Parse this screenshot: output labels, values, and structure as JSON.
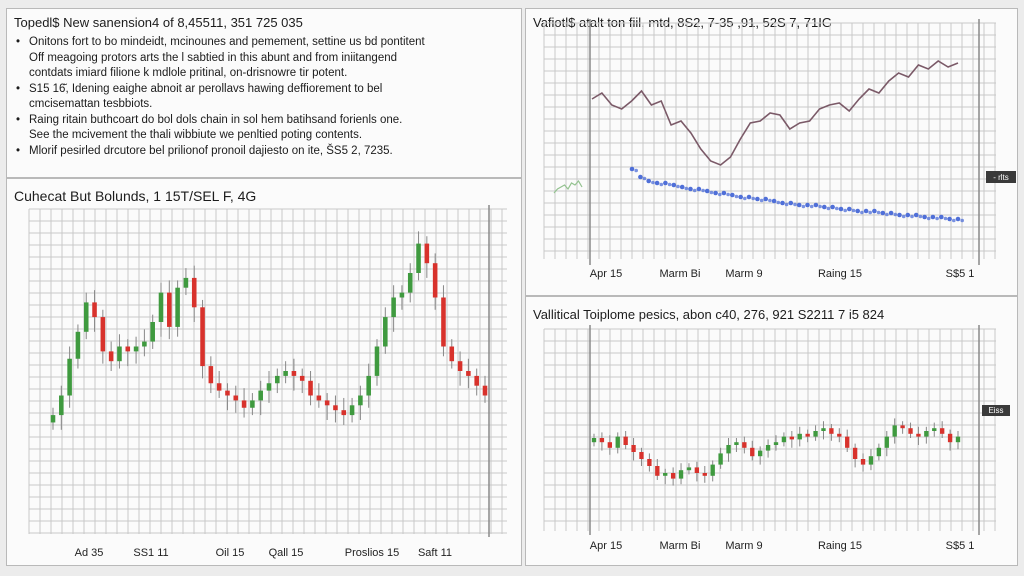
{
  "news": {
    "title": "Topedl$ New sanension4 of 8,45511, 351 725 035",
    "items": [
      {
        "text": "Onitons fort to bo mindeidt, mcinounes and pemement, settine us bd pontitent",
        "cont": false
      },
      {
        "text": "Off meagoing protors arts the l sabtied in this abunt and from iniitangend",
        "cont": true
      },
      {
        "text": "contdats imiard filione k mdlole pritinal, on-drisnowre tir potent.",
        "cont": true
      },
      {
        "text": "S15 16̆, Idening eaighe abnoit ar perollavs hawing deffiorement to bel",
        "cont": false
      },
      {
        "text": "cmcisemattan tesbbiots.",
        "cont": true
      },
      {
        "text": "Raing ritain buthcoart do bol dols chain in sol hem batihsand forienls one.",
        "cont": false
      },
      {
        "text": "See the mcivement the thali wibbiute we penltied poting contents.",
        "cont": true
      },
      {
        "text": "Mlorif pesirled drcutore bel prilionof pronoil dajiesto on ite, S̆S5 2, 7235.",
        "cont": false
      }
    ]
  },
  "candle_panel": {
    "title": "Cuhecat But Bolunds, 1 15T/SEL F, 4G"
  },
  "line_panel": {
    "title": "Vafiotl$ atalt ton fiil, mtd, 8S2, 7-35 ,91, 52S 7, 71IG",
    "marker_label": "- rlts"
  },
  "vol_panel": {
    "title": "Vallitical Toiplome pesics, abon c40, 276, 921 S2211 7 i5 824",
    "marker_label": "Eiss"
  },
  "colors": {
    "up": "#3f9a3f",
    "down": "#d8322c",
    "price_line": "#7b5a68",
    "volume_dots": "#4f6fd8",
    "grid": "#c8c8c8",
    "badge": "#3a3a3a"
  },
  "chart_data": [
    {
      "type": "candlestick",
      "title": "Cuhecat But Bolunds, 1 15T/SEL F, 4G",
      "x_tick_labels": [
        "Ad 35",
        "SS1 11",
        "Oil 15",
        "Qall 15",
        "Proslios 15",
        "Saft 11"
      ],
      "ylim": [
        0,
        100
      ],
      "grid": true,
      "close": [
        22,
        30,
        45,
        56,
        68,
        62,
        48,
        44,
        50,
        48,
        50,
        52,
        60,
        72,
        58,
        74,
        78,
        66,
        42,
        35,
        32,
        30,
        28,
        25,
        28,
        32,
        35,
        38,
        40,
        38,
        36,
        30,
        28,
        26,
        24,
        22,
        26,
        30,
        38,
        50,
        62,
        70,
        72,
        80,
        92,
        84,
        70,
        50,
        44,
        40,
        38,
        34,
        30
      ]
    },
    {
      "type": "line",
      "title": "Vafiotl$ atalt ton fiil, mtd, 8S2, 7-35 ,91, 52S 7, 71IG",
      "x_tick_labels": [
        "Apr 15",
        "Marm Bi",
        "Marm 9",
        "Raing 15",
        "S$5 1"
      ],
      "ylim": [
        0,
        100
      ],
      "grid": true,
      "series": [
        {
          "values": [
            75,
            78,
            72,
            70,
            74,
            79,
            72,
            74,
            62,
            64,
            58,
            50,
            44,
            42,
            46,
            55,
            63,
            64,
            68,
            67,
            60,
            63,
            64,
            70,
            72,
            73,
            69,
            75,
            80,
            78,
            84,
            88,
            86,
            92,
            90,
            94,
            91,
            93
          ]
        },
        {
          "values": [
            40,
            36,
            34,
            33,
            33,
            32,
            31,
            30,
            30,
            29,
            28,
            28,
            27,
            26,
            26,
            25,
            25,
            24,
            23,
            23,
            22,
            22,
            22,
            21,
            21,
            20,
            20,
            19,
            19,
            19,
            18,
            18,
            17,
            17,
            17,
            16,
            16,
            16,
            15,
            15
          ]
        },
        {
          "values": [
            28,
            30,
            31,
            32,
            30,
            33,
            32,
            34,
            31
          ]
        }
      ]
    },
    {
      "type": "candlestick",
      "title": "Vallitical Toiplome pesics, abon c40, 276, 921 S2211 7 i5 824",
      "x_tick_labels": [
        "Apr 15",
        "Marm Bi",
        "Marm 9",
        "Raing 15",
        "S$5 1"
      ],
      "ylim": [
        0,
        100
      ],
      "grid": true,
      "close": [
        55,
        52,
        48,
        56,
        50,
        45,
        40,
        35,
        28,
        30,
        26,
        32,
        34,
        30,
        28,
        36,
        44,
        50,
        52,
        48,
        42,
        46,
        50,
        52,
        56,
        54,
        58,
        56,
        60,
        62,
        58,
        56,
        48,
        40,
        36,
        42,
        48,
        56,
        64,
        62,
        58,
        56,
        60,
        62,
        58,
        52,
        56
      ]
    }
  ]
}
